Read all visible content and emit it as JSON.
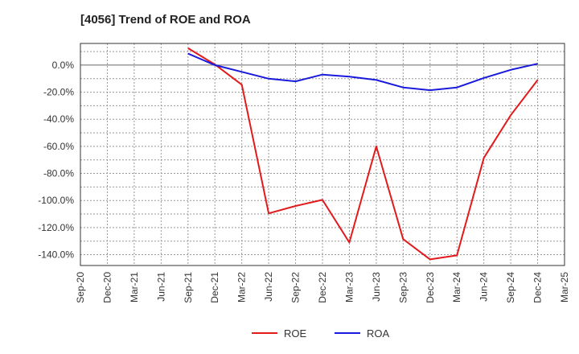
{
  "chart_data": {
    "type": "line",
    "title": "[4056]  Trend of ROE and ROA",
    "x": [
      "Sep-20",
      "Dec-20",
      "Mar-21",
      "Jun-21",
      "Sep-21",
      "Dec-21",
      "Mar-22",
      "Jun-22",
      "Sep-22",
      "Dec-22",
      "Mar-23",
      "Jun-23",
      "Sep-23",
      "Dec-23",
      "Mar-24",
      "Jun-24",
      "Sep-24",
      "Dec-24",
      "Mar-25"
    ],
    "ylim": [
      -148,
      16
    ],
    "yticks": [
      0,
      -20,
      -40,
      -60,
      -80,
      -100,
      -120,
      -140
    ],
    "ytick_labels": [
      "0.0%",
      "-20.0%",
      "-40.0%",
      "-60.0%",
      "-80.0%",
      "-100.0%",
      "-120.0%",
      "-140.0%"
    ],
    "grid": true,
    "legend_position": "bottom-center",
    "series": [
      {
        "name": "ROE",
        "color": "#e31a1c",
        "points": [
          {
            "x": "Sep-21",
            "y": 12.5
          },
          {
            "x": "Dec-21",
            "y": 0.5
          },
          {
            "x": "Mar-22",
            "y": -14.5
          },
          {
            "x": "Jun-22",
            "y": -109.5
          },
          {
            "x": "Sep-22",
            "y": -104.0
          },
          {
            "x": "Dec-22",
            "y": -99.5
          },
          {
            "x": "Mar-23",
            "y": -131.0
          },
          {
            "x": "Jun-23",
            "y": -60.0
          },
          {
            "x": "Sep-23",
            "y": -128.5
          },
          {
            "x": "Dec-23",
            "y": -143.5
          },
          {
            "x": "Mar-24",
            "y": -140.5
          },
          {
            "x": "Jun-24",
            "y": -68.5
          },
          {
            "x": "Sep-24",
            "y": -37.0
          },
          {
            "x": "Dec-24",
            "y": -11.0
          }
        ]
      },
      {
        "name": "ROA",
        "color": "#1a1adc",
        "points": [
          {
            "x": "Sep-21",
            "y": 8.5
          },
          {
            "x": "Dec-21",
            "y": 0.0
          },
          {
            "x": "Mar-22",
            "y": -5.0
          },
          {
            "x": "Jun-22",
            "y": -10.0
          },
          {
            "x": "Sep-22",
            "y": -12.0
          },
          {
            "x": "Dec-22",
            "y": -7.0
          },
          {
            "x": "Mar-23",
            "y": -8.5
          },
          {
            "x": "Jun-23",
            "y": -11.0
          },
          {
            "x": "Sep-23",
            "y": -16.5
          },
          {
            "x": "Dec-23",
            "y": -18.5
          },
          {
            "x": "Mar-24",
            "y": -16.5
          },
          {
            "x": "Jun-24",
            "y": -9.5
          },
          {
            "x": "Sep-24",
            "y": -3.5
          },
          {
            "x": "Dec-24",
            "y": 1.0
          }
        ]
      }
    ]
  }
}
